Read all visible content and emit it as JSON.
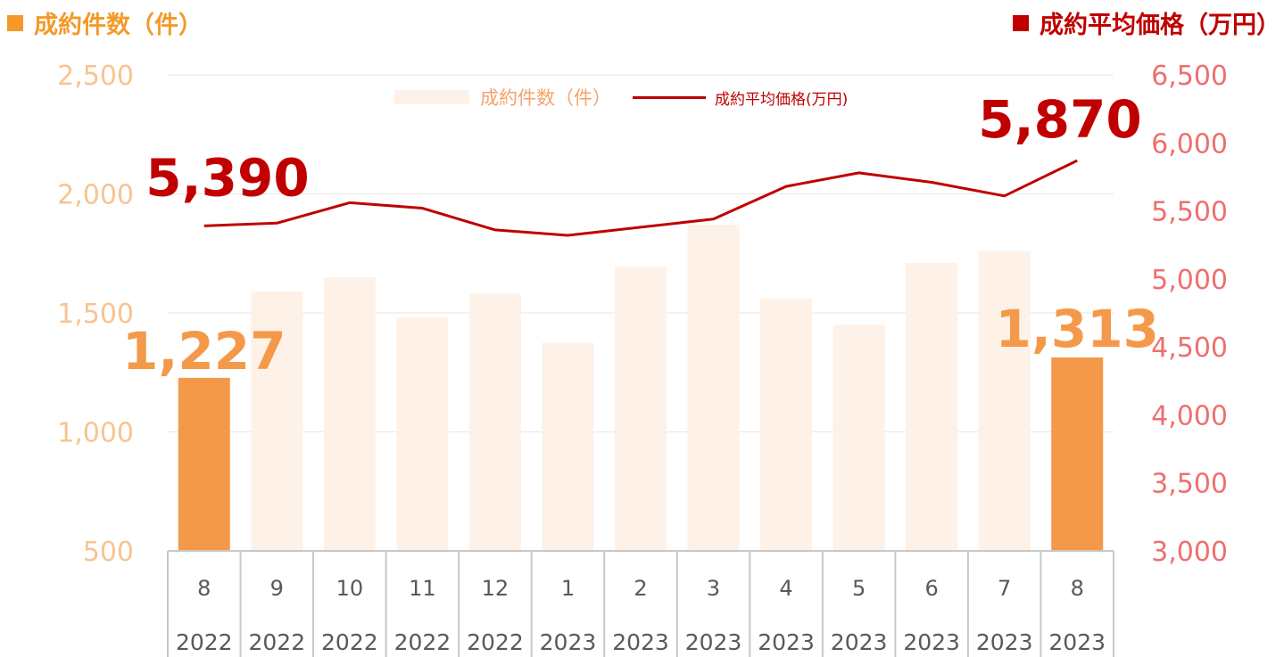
{
  "titles": {
    "left": "成約件数（件）",
    "right": "成約平均価格（万円）"
  },
  "legend": {
    "bar": "成約件数（件）",
    "line": "成約平均価格(万円)"
  },
  "colors": {
    "bar_highlight": "#f4994a",
    "bar_normal": "#fdf1e8",
    "line": "#c00000",
    "left_axis_text": "#f7c490",
    "right_axis_text": "#ee6f6f",
    "left_title": "#f39a2a",
    "right_title": "#c00000",
    "bar_label": "#f4994a",
    "line_label": "#c00000"
  },
  "chart_data": {
    "type": "bar",
    "categories": [
      "8",
      "9",
      "10",
      "11",
      "12",
      "1",
      "2",
      "3",
      "4",
      "5",
      "6",
      "7",
      "8"
    ],
    "years": [
      "2022",
      "2022",
      "2022",
      "2022",
      "2022",
      "2023",
      "2023",
      "2023",
      "2023",
      "2023",
      "2023",
      "2023",
      "2023"
    ],
    "series": [
      {
        "name": "成約件数（件）",
        "type": "bar",
        "axis": "left",
        "values": [
          1227,
          1590,
          1650,
          1480,
          1580,
          1375,
          1695,
          1870,
          1560,
          1450,
          1710,
          1760,
          1313
        ],
        "highlight": [
          true,
          false,
          false,
          false,
          false,
          false,
          false,
          false,
          false,
          false,
          false,
          false,
          true
        ]
      },
      {
        "name": "成約平均価格(万円)",
        "type": "line",
        "axis": "right",
        "values": [
          5390,
          5410,
          5560,
          5520,
          5360,
          5320,
          5380,
          5440,
          5680,
          5780,
          5710,
          5610,
          5870
        ]
      }
    ],
    "y_left": {
      "min": 500,
      "max": 2500,
      "ticks": [
        "500",
        "1,000",
        "1,500",
        "2,000",
        "2,500"
      ]
    },
    "y_right": {
      "min": 3000,
      "max": 6500,
      "ticks": [
        "3,000",
        "3,500",
        "4,000",
        "4,500",
        "5,000",
        "5,500",
        "6,000",
        "6,500"
      ]
    },
    "annotations": {
      "bar_first": "1,227",
      "bar_last": "1,313",
      "line_first": "5,390",
      "line_last": "5,870"
    },
    "grid": true,
    "legend_position": "top-center"
  }
}
